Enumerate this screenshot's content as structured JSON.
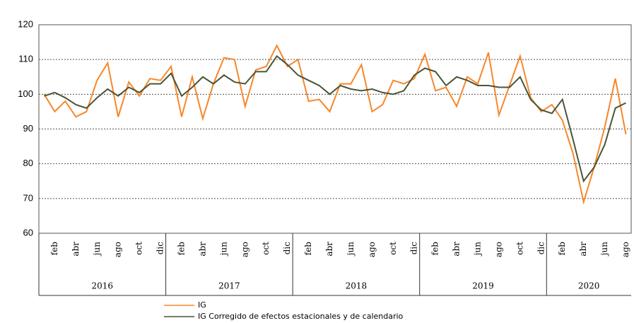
{
  "chart_data": {
    "type": "line",
    "categories": [
      null,
      "feb",
      null,
      "abr",
      null,
      "jun",
      null,
      "ago",
      null,
      "oct",
      null,
      "dic",
      null,
      "feb",
      null,
      "abr",
      null,
      "jun",
      null,
      "ago",
      null,
      "oct",
      null,
      "dic",
      null,
      "feb",
      null,
      "abr",
      null,
      "jun",
      null,
      "ago",
      null,
      "oct",
      null,
      "dic",
      null,
      "feb",
      null,
      "abr",
      null,
      "jun",
      null,
      "ago",
      null,
      "oct",
      null,
      "dic",
      null,
      "feb",
      null,
      "abr",
      null,
      "jun",
      null,
      "ago"
    ],
    "year_groups": [
      "2016",
      "2017",
      "2018",
      "2019",
      "2020"
    ],
    "series": [
      {
        "name": "IG",
        "color": "#f7872a",
        "values": [
          100,
          95,
          98,
          93.5,
          95,
          104,
          109,
          93.5,
          103.5,
          99.5,
          104.5,
          104,
          108,
          93.5,
          105,
          93,
          103,
          110.5,
          110,
          96.5,
          107,
          108,
          114,
          108,
          110,
          98,
          98.5,
          95,
          103,
          103,
          108.5,
          95,
          97,
          104,
          103,
          104.5,
          111.5,
          101,
          102,
          96.5,
          105,
          103,
          112,
          94,
          102.5,
          111,
          99,
          95,
          97,
          92.5,
          83,
          69,
          79,
          90.5,
          104.5,
          88.5
        ]
      },
      {
        "name": "IG Corregido de efectos estacionales y de calendario",
        "color": "#4a5535",
        "values": [
          99.5,
          100.5,
          99,
          97,
          96,
          99,
          101.5,
          99.5,
          102,
          100.5,
          103,
          103,
          106,
          99.5,
          102,
          105,
          103,
          105.5,
          103.5,
          103,
          106.5,
          106.5,
          111,
          108.5,
          105.5,
          104,
          102.5,
          100,
          102.5,
          101.5,
          101,
          101.5,
          100.5,
          100,
          101,
          105.5,
          107.5,
          106.5,
          102.5,
          105,
          104,
          102.5,
          102.5,
          102,
          102,
          105,
          98.5,
          95.5,
          94.5,
          98.5,
          87,
          75,
          79,
          85.5,
          96,
          97.5
        ]
      }
    ],
    "ylim": [
      60,
      120
    ],
    "yticks": [
      60,
      70,
      80,
      90,
      100,
      110,
      120
    ],
    "grid": true
  }
}
